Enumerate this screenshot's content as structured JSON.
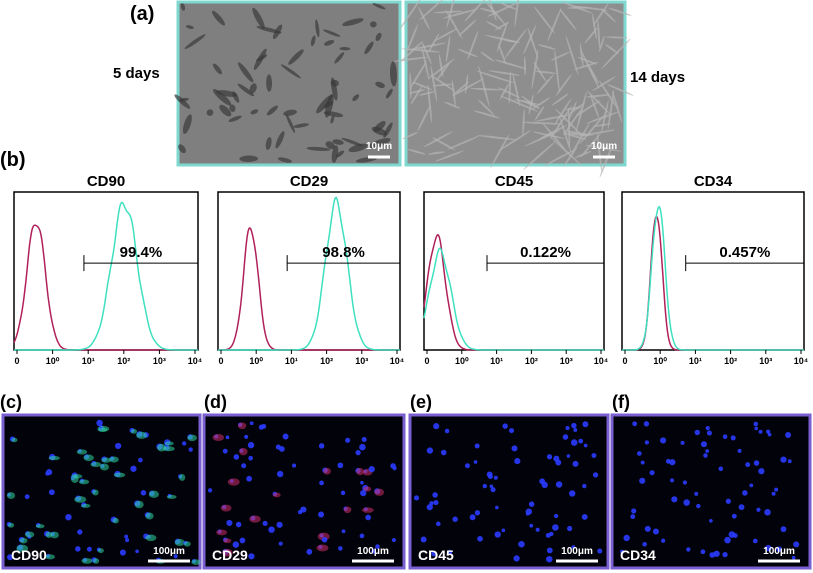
{
  "panel_a": {
    "label": "(a)",
    "images": [
      {
        "caption": "5 days",
        "scale": "10μm"
      },
      {
        "caption": "14 days",
        "scale": "10μm"
      }
    ]
  },
  "panel_b": {
    "label": "(b)",
    "x_ticks": [
      "0",
      "10⁰",
      "10¹",
      "10²",
      "10³",
      "10⁴"
    ],
    "histograms": [
      {
        "title": "CD90",
        "percent": "99.4%"
      },
      {
        "title": "CD29",
        "percent": "98.8%"
      },
      {
        "title": "CD45",
        "percent": "0.122%"
      },
      {
        "title": "CD34",
        "percent": "0.457%"
      }
    ]
  },
  "panels_cf": [
    {
      "label": "(c)",
      "marker": "CD90",
      "scale": "100μm"
    },
    {
      "label": "(d)",
      "marker": "CD29",
      "scale": "100μm"
    },
    {
      "label": "(e)",
      "marker": "CD45",
      "scale": "100μm"
    },
    {
      "label": "(f)",
      "marker": "CD34",
      "scale": "100μm"
    }
  ]
}
